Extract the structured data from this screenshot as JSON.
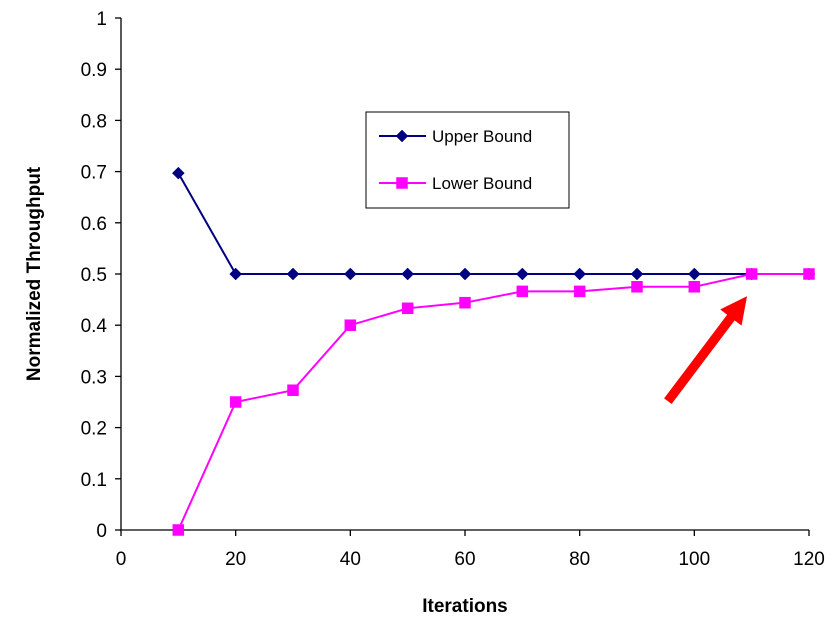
{
  "chart_data": {
    "type": "line",
    "xlabel": "Iterations",
    "ylabel": "Normalized Throughput",
    "xlim": [
      0,
      120
    ],
    "ylim": [
      0,
      1
    ],
    "xticks": [
      "0",
      "20",
      "40",
      "60",
      "80",
      "100",
      "120"
    ],
    "yticks": [
      "0",
      "0.1",
      "0.2",
      "0.3",
      "0.4",
      "0.5",
      "0.6",
      "0.7",
      "0.8",
      "0.9",
      "1"
    ],
    "grid": false,
    "legend_position": "upper-center",
    "x": [
      10,
      20,
      30,
      40,
      50,
      60,
      70,
      80,
      90,
      100,
      110,
      120
    ],
    "series": [
      {
        "name": "Upper Bound",
        "color": "#000080",
        "marker": "diamond",
        "values": [
          0.697,
          0.5,
          0.5,
          0.5,
          0.5,
          0.5,
          0.5,
          0.5,
          0.5,
          0.5,
          0.5,
          0.5
        ]
      },
      {
        "name": "Lower Bound",
        "color": "#FF00FF",
        "marker": "square",
        "values": [
          0.0,
          0.25,
          0.273,
          0.4,
          0.433,
          0.444,
          0.466,
          0.466,
          0.475,
          0.475,
          0.5,
          0.5
        ]
      }
    ],
    "annotations": [
      {
        "type": "arrow",
        "color": "#FF0000",
        "points_to": {
          "x": 110,
          "y": 0.45
        }
      }
    ]
  }
}
